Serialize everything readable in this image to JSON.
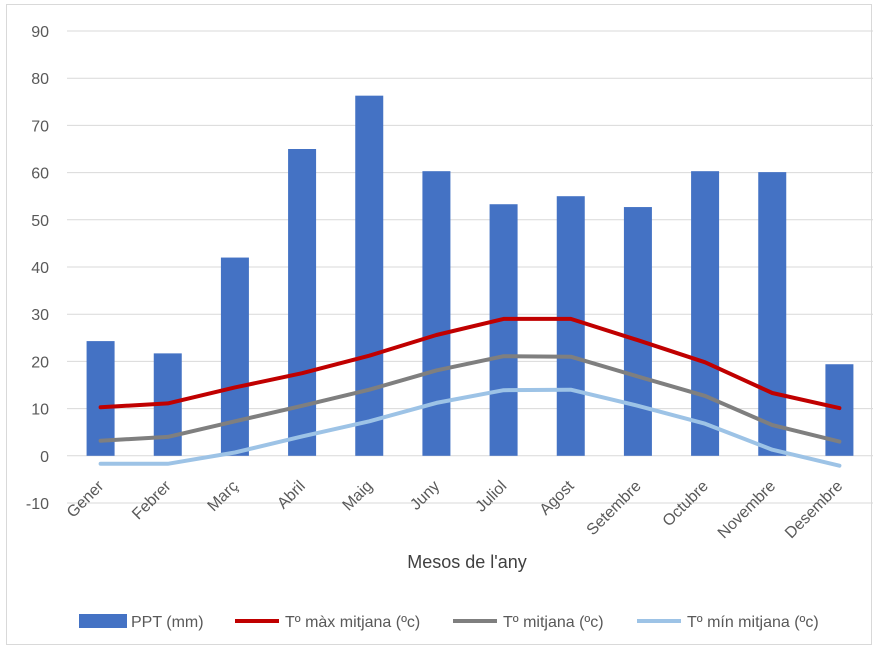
{
  "chart_data": {
    "type": "bar",
    "xlabel": "Mesos de l'any",
    "ylabel": "",
    "ylim": [
      -10,
      90
    ],
    "yticks": [
      -10,
      0,
      10,
      20,
      30,
      40,
      50,
      60,
      70,
      80,
      90
    ],
    "grid": true,
    "legend_position": "bottom",
    "categories": [
      "Gener",
      "Febrer",
      "Març",
      "Abril",
      "Maig",
      "Juny",
      "Juliol",
      "Agost",
      "Setembre",
      "Octubre",
      "Novembre",
      "Desembre"
    ],
    "series": [
      {
        "name": "PPT (mm)",
        "type": "bar",
        "color": "#4472C4",
        "values": [
          24.3,
          21.7,
          42,
          65,
          76.3,
          60.3,
          53.3,
          55,
          52.7,
          60.3,
          60.1,
          19.4
        ]
      },
      {
        "name": "Tº màx mitjana (ºc)",
        "type": "line",
        "color": "#C00000",
        "values": [
          10.3,
          11.1,
          14.5,
          17.5,
          21.2,
          25.6,
          29,
          29,
          24.5,
          19.8,
          13.3,
          10.1
        ]
      },
      {
        "name": "Tº mitjana (ºc)",
        "type": "line",
        "color": "#7F7F7F",
        "values": [
          3.2,
          4,
          7.3,
          10.6,
          14,
          18.1,
          21.1,
          21,
          16.8,
          12.7,
          6.5,
          3
        ]
      },
      {
        "name": "Tº mín mitjana (ºc)",
        "type": "line",
        "color": "#9DC3E6",
        "values": [
          -1.7,
          -1.7,
          0.7,
          4.1,
          7.3,
          11.2,
          13.9,
          14,
          10.6,
          6.8,
          1.3,
          -2.1
        ]
      }
    ]
  }
}
